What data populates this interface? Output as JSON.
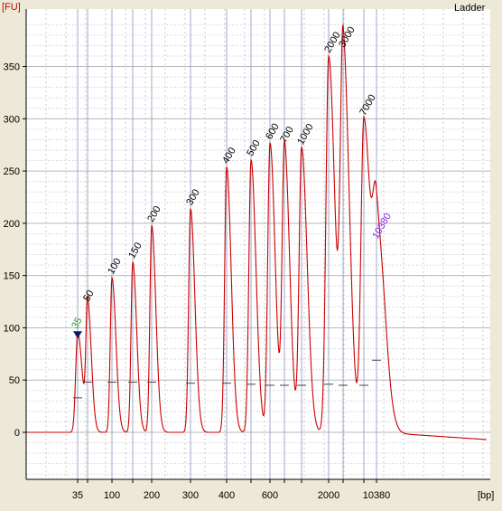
{
  "chart_data": {
    "type": "line",
    "title": "Ladder",
    "ylabel": "[FU]",
    "xlabel": "[bp]",
    "ylim": [
      -45,
      405
    ],
    "yticks": [
      0,
      50,
      100,
      150,
      200,
      250,
      300,
      350
    ],
    "xtick_labels": [
      "35",
      "100",
      "200",
      "300",
      "400",
      "600",
      "2000",
      "10380"
    ],
    "grid": true,
    "colors": {
      "trace": "#cc0000",
      "marker_label": "#2a9a2a",
      "upper_marker_label": "#8a2be2",
      "marker_triangle": "#0a1a60",
      "axis_label": "#cc0000",
      "background": "#ffffff",
      "grid": "#c8c8c8",
      "peak_gridline": "#a0a8c8"
    },
    "baseline": {
      "start": 0,
      "end": -7
    },
    "peaks": [
      {
        "label": "35",
        "height": 95,
        "label_kind": "marker",
        "marker": "triangle"
      },
      {
        "label": "50",
        "height": 122,
        "label_kind": "normal"
      },
      {
        "label": "100",
        "height": 148,
        "label_kind": "normal"
      },
      {
        "label": "150",
        "height": 163,
        "label_kind": "normal"
      },
      {
        "label": "200",
        "height": 198,
        "label_kind": "normal"
      },
      {
        "label": "300",
        "height": 214,
        "label_kind": "normal"
      },
      {
        "label": "400",
        "height": 254,
        "label_kind": "normal"
      },
      {
        "label": "500",
        "height": 261,
        "label_kind": "normal"
      },
      {
        "label": "600",
        "height": 277,
        "label_kind": "normal"
      },
      {
        "label": "700",
        "height": 274,
        "label_kind": "normal"
      },
      {
        "label": "1000",
        "height": 272,
        "label_kind": "normal"
      },
      {
        "label": "2000",
        "height": 360,
        "label_kind": "normal"
      },
      {
        "label": "3000",
        "height": 365,
        "label_kind": "normal"
      },
      {
        "label": "7000",
        "height": 300,
        "label_kind": "normal"
      },
      {
        "label": "10380",
        "height": 182,
        "label_kind": "upper-marker"
      }
    ]
  }
}
